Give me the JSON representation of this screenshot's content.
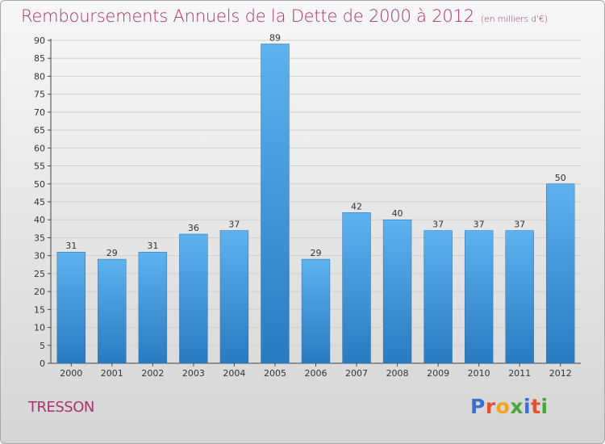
{
  "title": "Remboursements Annuels de la Dette de 2000 à 2012",
  "unit_note": "(en milliers d'€)",
  "commune": "TRESSON",
  "logo": {
    "text": "Proxiti",
    "letter_colors": [
      "#3a6fd8",
      "#e0522f",
      "#f2a320",
      "#4aa63a",
      "#3a6fd8",
      "#e0522f",
      "#4aa63a"
    ]
  },
  "colors": {
    "title": "#a8356b",
    "bar_light": "#5eb2ee",
    "bar_dark": "#2a7ac0",
    "grid": "#d0d0d0"
  },
  "chart_data": {
    "type": "bar",
    "title": "Remboursements Annuels de la Dette de 2000 à 2012",
    "xlabel": "",
    "ylabel": "",
    "categories": [
      "2000",
      "2001",
      "2002",
      "2003",
      "2004",
      "2005",
      "2006",
      "2007",
      "2008",
      "2009",
      "2010",
      "2011",
      "2012"
    ],
    "values": [
      31,
      29,
      31,
      36,
      37,
      89,
      29,
      42,
      40,
      37,
      37,
      37,
      50
    ],
    "ylim": [
      0,
      90
    ],
    "y_ticks": [
      0,
      5,
      10,
      15,
      20,
      25,
      30,
      35,
      40,
      45,
      50,
      55,
      60,
      65,
      70,
      75,
      80,
      85,
      90
    ],
    "grid": true,
    "data_labels": true
  }
}
